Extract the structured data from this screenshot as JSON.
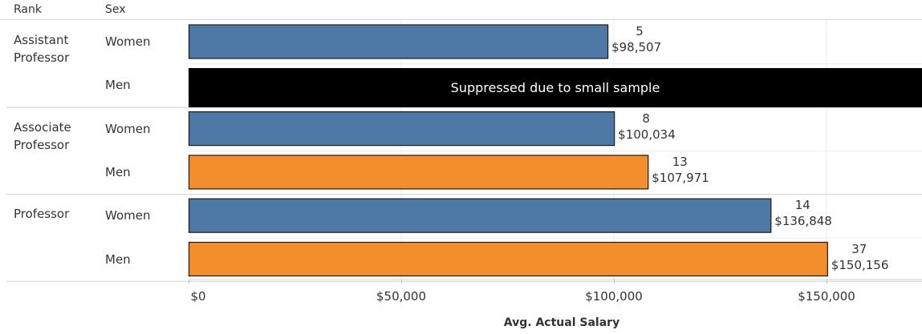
{
  "headers": {
    "rank": "Rank",
    "sex": "Sex"
  },
  "colors": {
    "women": "#4e79a7",
    "men": "#f28e2b",
    "suppressed": "#000000"
  },
  "chart_data": {
    "type": "bar",
    "orientation": "horizontal",
    "xlabel": "Avg. Actual Salary",
    "xlim": [
      0,
      170000
    ],
    "xticks": [
      0,
      50000,
      100000,
      150000
    ],
    "xtick_labels": [
      "$0",
      "$50,000",
      "$100,000",
      "$150,000"
    ],
    "grid": true,
    "groups": [
      {
        "rank": "Assistant Professor",
        "rank_lines": [
          "Assistant",
          "Professor"
        ],
        "rows": [
          {
            "sex": "Women",
            "value": 98507,
            "count": 5,
            "value_label": "$98,507"
          },
          {
            "sex": "Men",
            "value": null,
            "suppressed": true,
            "note": "Suppressed due to small sample"
          }
        ]
      },
      {
        "rank": "Associate Professor",
        "rank_lines": [
          "Associate",
          "Professor"
        ],
        "rows": [
          {
            "sex": "Women",
            "value": 100034,
            "count": 8,
            "value_label": "$100,034"
          },
          {
            "sex": "Men",
            "value": 107971,
            "count": 13,
            "value_label": "$107,971"
          }
        ]
      },
      {
        "rank": "Professor",
        "rank_lines": [
          "Professor"
        ],
        "rows": [
          {
            "sex": "Women",
            "value": 136848,
            "count": 14,
            "value_label": "$136,848"
          },
          {
            "sex": "Men",
            "value": 150156,
            "count": 37,
            "value_label": "$150,156"
          }
        ]
      }
    ]
  }
}
